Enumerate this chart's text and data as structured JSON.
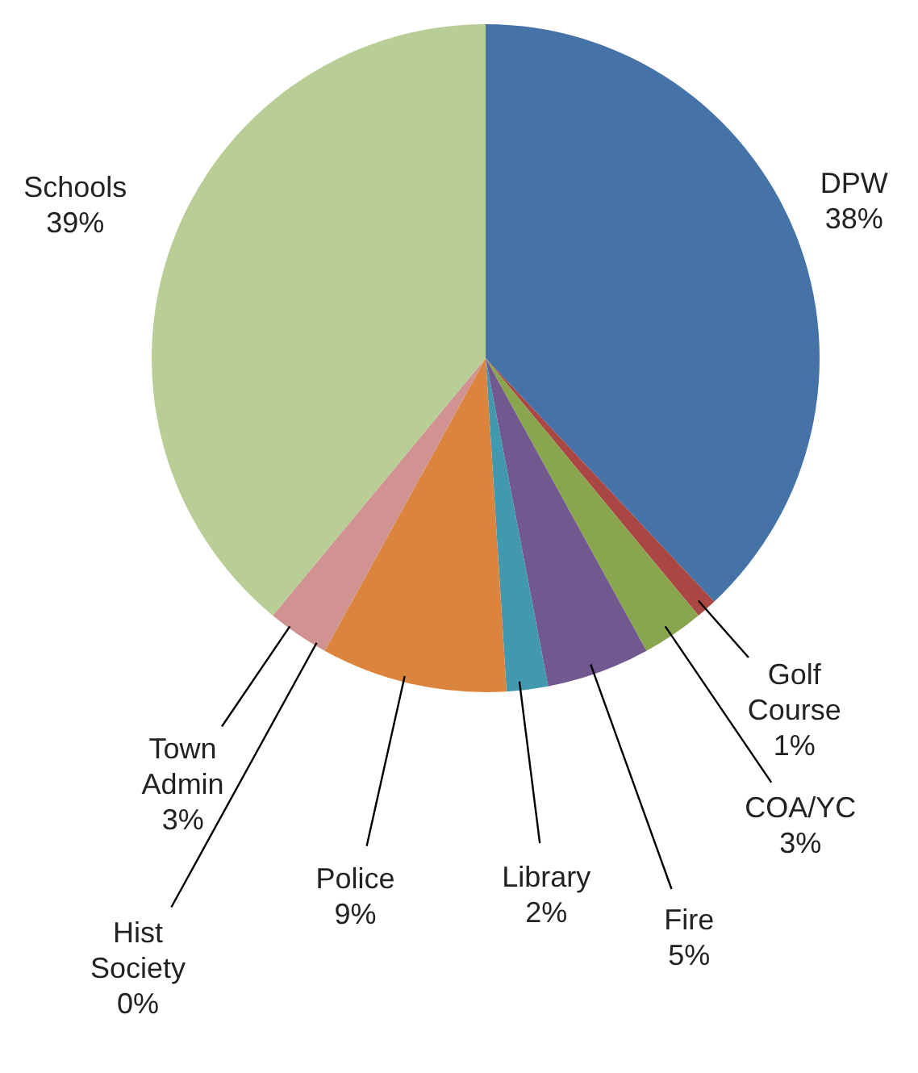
{
  "chart_data": {
    "type": "pie",
    "categories": [
      "DPW",
      "Golf Course",
      "COA/YC",
      "Fire",
      "Library",
      "Police",
      "Hist Society",
      "Town Admin",
      "Schools"
    ],
    "values": [
      38,
      1,
      3,
      5,
      2,
      9,
      0,
      3,
      39
    ],
    "colors": [
      "#4572a7",
      "#aa4643",
      "#89a54e",
      "#71588f",
      "#4198af",
      "#db843d",
      "#93a9cf",
      "#d19392",
      "#b9cd96"
    ],
    "value_labels": [
      "38%",
      "1%",
      "3%",
      "5%",
      "2%",
      "9%",
      "0%",
      "3%",
      "39%"
    ],
    "legend": false
  }
}
